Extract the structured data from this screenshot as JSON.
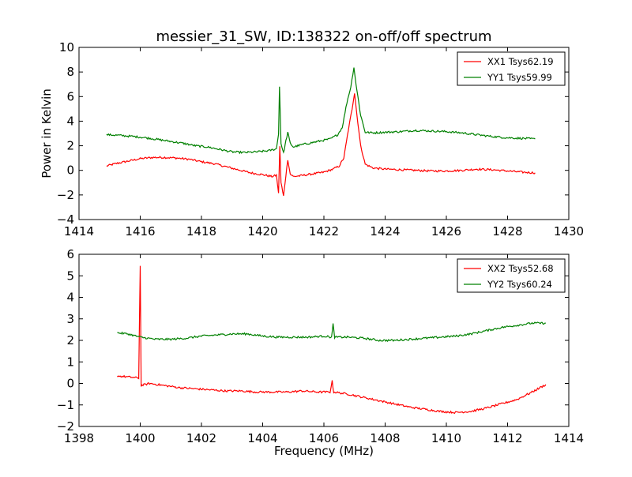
{
  "title": "messier_31_SW, ID:138322 on-off/off spectrum",
  "chart_data": [
    {
      "type": "line",
      "title": "messier_31_SW, ID:138322 on-off/off spectrum",
      "xlabel": "",
      "ylabel": "Power in Kelvin",
      "xlim": [
        1414,
        1430
      ],
      "ylim": [
        -4,
        10
      ],
      "xticks": [
        1414,
        1416,
        1418,
        1420,
        1422,
        1424,
        1426,
        1428,
        1430
      ],
      "yticks": [
        -4,
        -2,
        0,
        2,
        4,
        6,
        8,
        10
      ],
      "grid": false,
      "legend_position": "top-right",
      "series": [
        {
          "name": "XX1 Tsys62.19",
          "color": "#ff0000",
          "points": [
            [
              1414.9,
              0.35
            ],
            [
              1415.2,
              0.55
            ],
            [
              1415.6,
              0.75
            ],
            [
              1416.0,
              0.95
            ],
            [
              1416.4,
              1.05
            ],
            [
              1416.8,
              1.05
            ],
            [
              1417.2,
              1.0
            ],
            [
              1417.6,
              0.9
            ],
            [
              1418.0,
              0.7
            ],
            [
              1418.4,
              0.55
            ],
            [
              1418.8,
              0.3
            ],
            [
              1419.2,
              0.05
            ],
            [
              1419.6,
              -0.2
            ],
            [
              1420.0,
              -0.35
            ],
            [
              1420.3,
              -0.5
            ],
            [
              1420.45,
              -0.4
            ],
            [
              1420.52,
              -1.9
            ],
            [
              1420.56,
              2.0
            ],
            [
              1420.6,
              -1.0
            ],
            [
              1420.68,
              -2.1
            ],
            [
              1420.76,
              -0.4
            ],
            [
              1420.82,
              0.9
            ],
            [
              1420.9,
              -0.3
            ],
            [
              1421.0,
              -0.5
            ],
            [
              1421.2,
              -0.45
            ],
            [
              1421.6,
              -0.3
            ],
            [
              1422.0,
              -0.15
            ],
            [
              1422.3,
              0.1
            ],
            [
              1422.5,
              0.35
            ],
            [
              1422.65,
              1.0
            ],
            [
              1422.8,
              3.3
            ],
            [
              1422.92,
              5.0
            ],
            [
              1423.0,
              6.3
            ],
            [
              1423.08,
              4.5
            ],
            [
              1423.2,
              2.0
            ],
            [
              1423.35,
              0.5
            ],
            [
              1423.6,
              0.2
            ],
            [
              1424.0,
              0.1
            ],
            [
              1424.5,
              0.05
            ],
            [
              1425.0,
              0.0
            ],
            [
              1425.5,
              -0.05
            ],
            [
              1426.0,
              -0.05
            ],
            [
              1426.5,
              0.0
            ],
            [
              1427.0,
              0.1
            ],
            [
              1427.5,
              0.05
            ],
            [
              1428.0,
              -0.05
            ],
            [
              1428.5,
              -0.15
            ],
            [
              1428.9,
              -0.2
            ]
          ]
        },
        {
          "name": "YY1 Tsys59.99",
          "color": "#008000",
          "points": [
            [
              1414.9,
              2.9
            ],
            [
              1415.3,
              2.85
            ],
            [
              1415.8,
              2.75
            ],
            [
              1416.2,
              2.65
            ],
            [
              1416.6,
              2.5
            ],
            [
              1417.0,
              2.35
            ],
            [
              1417.4,
              2.2
            ],
            [
              1417.8,
              2.0
            ],
            [
              1418.2,
              1.9
            ],
            [
              1418.6,
              1.7
            ],
            [
              1419.0,
              1.5
            ],
            [
              1419.4,
              1.45
            ],
            [
              1419.8,
              1.5
            ],
            [
              1420.2,
              1.6
            ],
            [
              1420.45,
              1.75
            ],
            [
              1420.52,
              3.0
            ],
            [
              1420.55,
              6.8
            ],
            [
              1420.6,
              2.2
            ],
            [
              1420.68,
              1.4
            ],
            [
              1420.76,
              2.4
            ],
            [
              1420.82,
              3.1
            ],
            [
              1420.9,
              2.2
            ],
            [
              1421.0,
              1.9
            ],
            [
              1421.3,
              2.1
            ],
            [
              1421.8,
              2.35
            ],
            [
              1422.2,
              2.55
            ],
            [
              1422.45,
              2.9
            ],
            [
              1422.6,
              3.5
            ],
            [
              1422.75,
              5.5
            ],
            [
              1422.88,
              6.8
            ],
            [
              1422.98,
              8.4
            ],
            [
              1423.05,
              7.0
            ],
            [
              1423.2,
              4.5
            ],
            [
              1423.35,
              3.1
            ],
            [
              1423.6,
              3.05
            ],
            [
              1424.0,
              3.1
            ],
            [
              1424.5,
              3.15
            ],
            [
              1425.0,
              3.25
            ],
            [
              1425.5,
              3.2
            ],
            [
              1426.0,
              3.15
            ],
            [
              1426.5,
              3.05
            ],
            [
              1427.0,
              2.9
            ],
            [
              1427.5,
              2.75
            ],
            [
              1428.0,
              2.65
            ],
            [
              1428.5,
              2.6
            ],
            [
              1428.9,
              2.55
            ]
          ]
        }
      ]
    },
    {
      "type": "line",
      "title": "",
      "xlabel": "Frequency (MHz)",
      "ylabel": "",
      "xlim": [
        1398,
        1414
      ],
      "ylim": [
        -2,
        6
      ],
      "xticks": [
        1398,
        1400,
        1402,
        1404,
        1406,
        1408,
        1410,
        1412,
        1414
      ],
      "yticks": [
        -2,
        -1,
        0,
        1,
        2,
        3,
        4,
        5,
        6
      ],
      "grid": false,
      "legend_position": "top-right",
      "series": [
        {
          "name": "XX2 Tsys52.68",
          "color": "#ff0000",
          "points": [
            [
              1399.25,
              0.35
            ],
            [
              1399.6,
              0.3
            ],
            [
              1399.95,
              0.25
            ],
            [
              1400.0,
              5.45
            ],
            [
              1400.03,
              -0.1
            ],
            [
              1400.3,
              0.0
            ],
            [
              1400.8,
              -0.1
            ],
            [
              1401.3,
              -0.2
            ],
            [
              1401.8,
              -0.25
            ],
            [
              1402.3,
              -0.3
            ],
            [
              1402.8,
              -0.35
            ],
            [
              1403.3,
              -0.35
            ],
            [
              1403.8,
              -0.4
            ],
            [
              1404.3,
              -0.4
            ],
            [
              1404.8,
              -0.4
            ],
            [
              1405.3,
              -0.35
            ],
            [
              1405.8,
              -0.4
            ],
            [
              1406.2,
              -0.4
            ],
            [
              1406.27,
              0.1
            ],
            [
              1406.32,
              -0.4
            ],
            [
              1406.8,
              -0.5
            ],
            [
              1407.3,
              -0.65
            ],
            [
              1407.8,
              -0.8
            ],
            [
              1408.3,
              -0.95
            ],
            [
              1408.8,
              -1.1
            ],
            [
              1409.3,
              -1.2
            ],
            [
              1409.8,
              -1.3
            ],
            [
              1410.3,
              -1.35
            ],
            [
              1410.8,
              -1.3
            ],
            [
              1411.3,
              -1.15
            ],
            [
              1411.8,
              -0.95
            ],
            [
              1412.3,
              -0.75
            ],
            [
              1412.8,
              -0.4
            ],
            [
              1413.25,
              -0.05
            ]
          ]
        },
        {
          "name": "YY2 Tsys60.24",
          "color": "#008000",
          "points": [
            [
              1399.25,
              2.35
            ],
            [
              1399.6,
              2.3
            ],
            [
              1400.0,
              2.15
            ],
            [
              1400.5,
              2.05
            ],
            [
              1401.0,
              2.05
            ],
            [
              1401.5,
              2.1
            ],
            [
              1402.0,
              2.2
            ],
            [
              1402.5,
              2.25
            ],
            [
              1403.0,
              2.3
            ],
            [
              1403.5,
              2.3
            ],
            [
              1404.0,
              2.2
            ],
            [
              1404.5,
              2.15
            ],
            [
              1405.0,
              2.15
            ],
            [
              1405.5,
              2.15
            ],
            [
              1406.0,
              2.2
            ],
            [
              1406.25,
              2.15
            ],
            [
              1406.3,
              2.75
            ],
            [
              1406.35,
              2.15
            ],
            [
              1406.8,
              2.15
            ],
            [
              1407.3,
              2.1
            ],
            [
              1407.8,
              2.0
            ],
            [
              1408.3,
              2.0
            ],
            [
              1408.8,
              2.05
            ],
            [
              1409.3,
              2.1
            ],
            [
              1409.8,
              2.15
            ],
            [
              1410.3,
              2.2
            ],
            [
              1410.8,
              2.3
            ],
            [
              1411.3,
              2.45
            ],
            [
              1411.8,
              2.6
            ],
            [
              1412.3,
              2.7
            ],
            [
              1412.8,
              2.8
            ],
            [
              1413.25,
              2.8
            ]
          ]
        }
      ]
    }
  ]
}
